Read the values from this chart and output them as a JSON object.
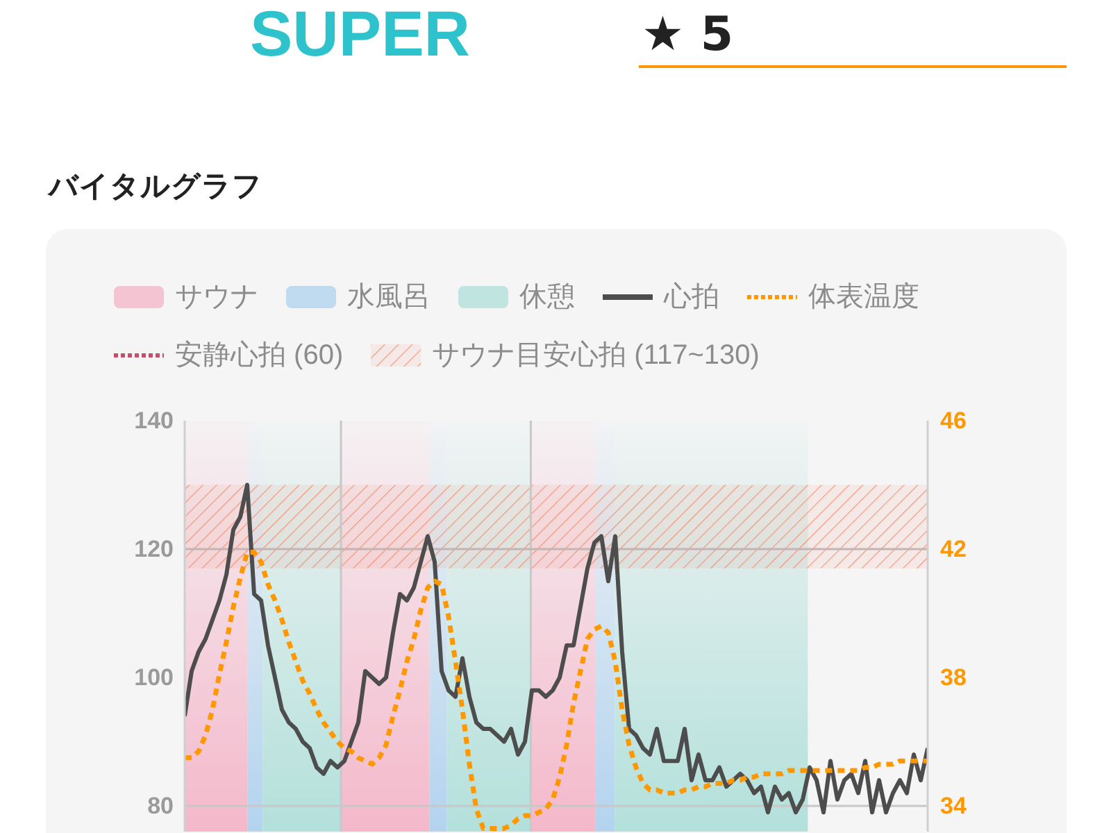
{
  "chart_data": {
    "type": "line",
    "title": "バイタルグラフ",
    "annotations": [
      "SUPER",
      "★ 5",
      "サウナ",
      "水風呂",
      "休憩"
    ],
    "categories": [
      null,
      null,
      null,
      null,
      null,
      null,
      null,
      null,
      null,
      null,
      null,
      null,
      null,
      null,
      null,
      null,
      null,
      null,
      null,
      null,
      null,
      null,
      null,
      null,
      null,
      null,
      null,
      null,
      null,
      null,
      null,
      null,
      null,
      null,
      null,
      null,
      null,
      null,
      null,
      null,
      null,
      null,
      null,
      null,
      null,
      null,
      null,
      null,
      null,
      null,
      null,
      null,
      null,
      null,
      null,
      null,
      null,
      null,
      null,
      null,
      null,
      null,
      null,
      null,
      null,
      null,
      null,
      null,
      null,
      null,
      null,
      null,
      null,
      null,
      null,
      null,
      null,
      null,
      null,
      null,
      null,
      null,
      null,
      null,
      null,
      null,
      null,
      null,
      null,
      null,
      null,
      null,
      null,
      null,
      null,
      null,
      null,
      null,
      null,
      null,
      null,
      null,
      null,
      null,
      null,
      null,
      null,
      null
    ],
    "series": [
      {
        "name": "心拍",
        "color": "#4d4d4d",
        "values": [
          94,
          101,
          104,
          106,
          109,
          112,
          116,
          123,
          125,
          130,
          113,
          112,
          105,
          100,
          95,
          93,
          92,
          90,
          89,
          86,
          85,
          87,
          86,
          87,
          90,
          93,
          101,
          100,
          99,
          100,
          107,
          113,
          112,
          114,
          118,
          122,
          118,
          101,
          98,
          97,
          103,
          97,
          93,
          92,
          92,
          91,
          90,
          92,
          88,
          90,
          98,
          98,
          97,
          98,
          100,
          105,
          105,
          111,
          117,
          121,
          122,
          115,
          122,
          104,
          92,
          91,
          89,
          88,
          92,
          87,
          87,
          87,
          92,
          84,
          88,
          84,
          84,
          86,
          83,
          84,
          85,
          84,
          82,
          83,
          79,
          83,
          81,
          82,
          79,
          81,
          86,
          84,
          79,
          87,
          81,
          84,
          85,
          82,
          87,
          79,
          84,
          79,
          82,
          84,
          82,
          88,
          84,
          89
        ]
      },
      {
        "name": "体表温度",
        "color": "#ff9800",
        "axis": "y2",
        "line_style": "dotted",
        "values": [
          35.5,
          35.5,
          35.7,
          36.2,
          37.0,
          38.1,
          39.1,
          40.2,
          41.1,
          41.9,
          41.9,
          41.6,
          40.9,
          40.4,
          39.8,
          39.1,
          38.5,
          37.9,
          37.5,
          37.0,
          36.6,
          36.3,
          36.0,
          35.8,
          35.7,
          35.5,
          35.4,
          35.3,
          35.5,
          35.9,
          36.8,
          37.6,
          38.5,
          39.2,
          40.1,
          40.8,
          41.0,
          40.9,
          39.9,
          38.5,
          37.0,
          35.3,
          33.9,
          33.3,
          33.3,
          33.3,
          33.3,
          33.4,
          33.6,
          33.7,
          33.7,
          33.8,
          33.9,
          34.2,
          34.9,
          35.9,
          37.2,
          38.2,
          39.2,
          39.5,
          39.6,
          39.4,
          38.5,
          37.0,
          35.9,
          35.2,
          34.7,
          34.5,
          34.5,
          34.4,
          34.4,
          34.4,
          34.5,
          34.5,
          34.6,
          34.6,
          34.7,
          34.7,
          34.7,
          34.8,
          34.8,
          34.9,
          34.9,
          35.0,
          35.0,
          35.0,
          35.0,
          35.1,
          35.1,
          35.1,
          35.1,
          35.1,
          35.1,
          35.1,
          35.1,
          35.1,
          35.1,
          35.1,
          35.2,
          35.2,
          35.3,
          35.3,
          35.3,
          35.4,
          35.4,
          35.4,
          35.4,
          35.4
        ]
      }
    ],
    "ylim": [
      76,
      140
    ],
    "yticks": [
      80,
      100,
      120,
      140
    ],
    "y2lim": [
      33.2,
      46
    ],
    "y2ticks": [
      34,
      38,
      42,
      46
    ],
    "bands": [
      {
        "axis": "y",
        "from": 117,
        "to": 130,
        "label": "サウナ目安心拍 (117~130)",
        "color": "#f08462"
      }
    ],
    "ref_lines": [
      {
        "axis": "y",
        "value": 120,
        "color": "#c4b4b4"
      },
      {
        "axis": "y",
        "value": 80,
        "color": "#c8c8c8"
      },
      {
        "axis": "y",
        "label": "安静心拍 (60)",
        "color": "#c2506c",
        "line_style": "dotted"
      }
    ],
    "legend": "top"
  }
}
